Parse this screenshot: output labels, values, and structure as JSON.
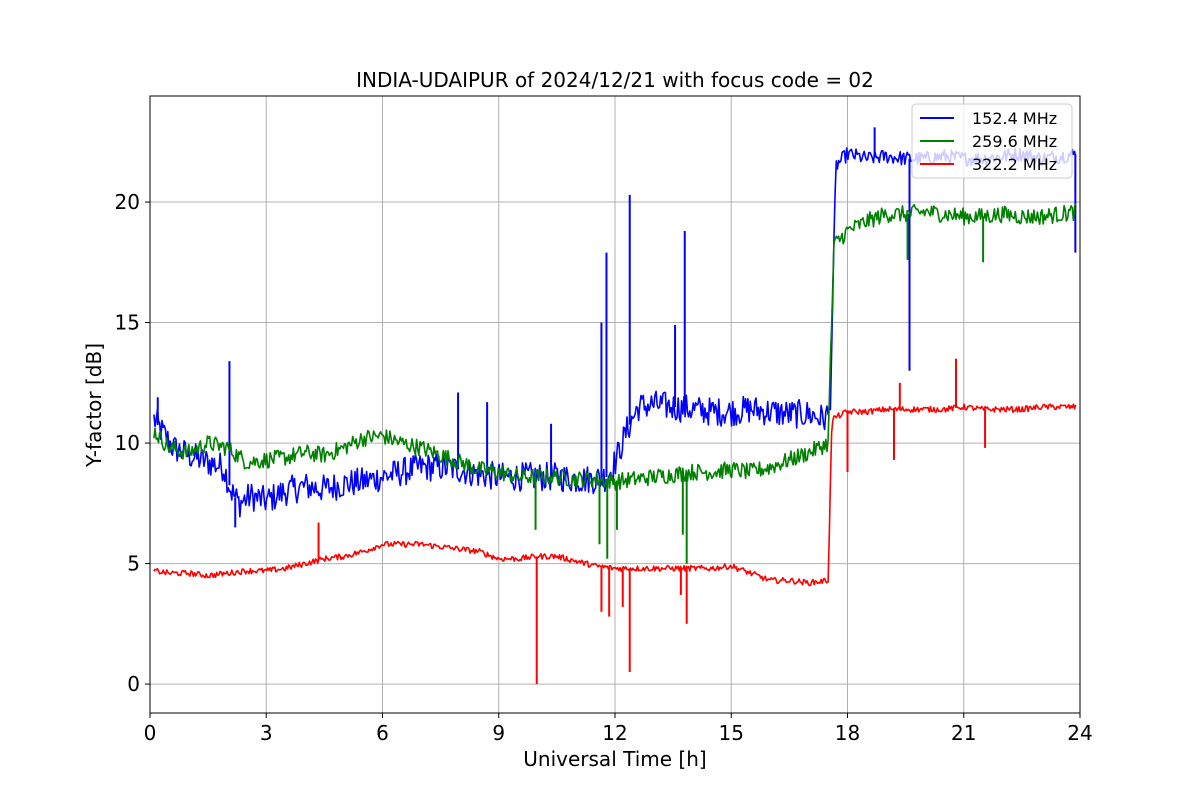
{
  "chart_data": {
    "type": "line",
    "title": "INDIA-UDAIPUR of 2024/12/21 with focus code = 02",
    "xlabel": "Universal Time [h]",
    "ylabel": "Y-factor [dB]",
    "xlim": [
      0,
      24
    ],
    "ylim": [
      -1.2,
      24.4
    ],
    "xticks": [
      0,
      3,
      6,
      9,
      12,
      15,
      18,
      21,
      24
    ],
    "yticks": [
      0,
      5,
      10,
      15,
      20
    ],
    "grid": true,
    "legend_position": "top-right",
    "series": [
      {
        "name": "152.4 MHz",
        "color": "#0000ff",
        "x": [
          0.1,
          0.3,
          0.6,
          1.0,
          1.5,
          1.9,
          2.1,
          2.3,
          2.6,
          3.0,
          3.5,
          4.0,
          4.5,
          5.0,
          5.5,
          6.0,
          6.5,
          7.0,
          7.5,
          8.0,
          8.5,
          9.0,
          9.5,
          10.0,
          10.5,
          11.0,
          11.5,
          11.8,
          12.0,
          12.3,
          12.6,
          13.0,
          13.5,
          14.0,
          14.5,
          15.0,
          15.5,
          16.0,
          16.5,
          17.0,
          17.4,
          17.55,
          17.7,
          18.0,
          18.5,
          19.0,
          19.5,
          20.0,
          20.5,
          21.0,
          21.5,
          22.0,
          22.5,
          23.0,
          23.5,
          23.9
        ],
        "y": [
          11.0,
          10.5,
          9.8,
          9.5,
          9.2,
          9.0,
          8.0,
          7.5,
          7.8,
          7.6,
          8.0,
          8.2,
          8.1,
          8.3,
          8.4,
          8.6,
          8.8,
          9.0,
          9.0,
          8.9,
          8.7,
          8.6,
          8.6,
          8.6,
          8.6,
          8.5,
          8.5,
          8.6,
          9.2,
          10.5,
          11.5,
          11.6,
          11.5,
          11.4,
          11.3,
          11.3,
          11.4,
          11.3,
          11.2,
          11.2,
          11.0,
          11.3,
          21.5,
          22.0,
          21.8,
          21.9,
          21.8,
          21.8,
          21.9,
          21.8,
          21.8,
          21.9,
          22.0,
          21.8,
          21.9,
          22.0
        ],
        "spikes": [
          [
            0.2,
            11.9
          ],
          [
            2.05,
            13.4
          ],
          [
            2.2,
            6.5
          ],
          [
            7.95,
            12.1
          ],
          [
            8.7,
            11.7
          ],
          [
            10.35,
            10.8
          ],
          [
            11.65,
            15.0
          ],
          [
            11.78,
            17.9
          ],
          [
            12.38,
            20.3
          ],
          [
            13.8,
            18.8
          ],
          [
            13.55,
            14.9
          ],
          [
            18.7,
            23.1
          ],
          [
            19.6,
            13.0
          ],
          [
            23.88,
            17.9
          ]
        ]
      },
      {
        "name": "259.6 MHz",
        "color": "#008000",
        "x": [
          0.1,
          0.5,
          1.0,
          1.5,
          2.0,
          2.5,
          3.0,
          3.5,
          4.0,
          4.5,
          5.0,
          5.5,
          6.0,
          6.5,
          7.0,
          7.5,
          8.0,
          8.5,
          9.0,
          9.5,
          10.0,
          10.5,
          11.0,
          11.5,
          12.0,
          12.5,
          13.0,
          13.5,
          14.0,
          14.5,
          15.0,
          15.5,
          16.0,
          16.5,
          17.0,
          17.5,
          17.65,
          18.0,
          18.5,
          19.0,
          19.5,
          20.0,
          20.5,
          21.0,
          21.5,
          22.0,
          22.5,
          23.0,
          23.5,
          23.9
        ],
        "y": [
          10.5,
          9.8,
          9.6,
          10.0,
          9.8,
          9.2,
          9.3,
          9.4,
          9.6,
          9.5,
          9.8,
          10.2,
          10.3,
          10.0,
          9.8,
          9.5,
          9.2,
          8.9,
          8.8,
          8.6,
          8.6,
          8.6,
          8.5,
          8.5,
          8.4,
          8.5,
          8.6,
          8.7,
          8.8,
          8.8,
          8.9,
          8.8,
          9.0,
          9.3,
          9.6,
          10.0,
          18.2,
          18.8,
          19.2,
          19.5,
          19.5,
          19.6,
          19.5,
          19.4,
          19.4,
          19.5,
          19.4,
          19.4,
          19.5,
          19.6
        ],
        "spikes": [
          [
            9.95,
            6.4
          ],
          [
            11.6,
            5.8
          ],
          [
            11.8,
            5.2
          ],
          [
            12.05,
            6.4
          ],
          [
            13.75,
            6.2
          ],
          [
            13.85,
            5.0
          ],
          [
            17.6,
            15.5
          ],
          [
            19.55,
            17.6
          ],
          [
            21.5,
            17.5
          ]
        ]
      },
      {
        "name": "322.2 MHz",
        "color": "#ff0000",
        "x": [
          0.1,
          0.5,
          1.0,
          1.5,
          2.0,
          2.5,
          3.0,
          3.5,
          4.0,
          4.5,
          5.0,
          5.5,
          6.0,
          6.5,
          7.0,
          7.5,
          8.0,
          8.5,
          9.0,
          9.5,
          10.0,
          10.5,
          11.0,
          11.5,
          12.0,
          12.5,
          13.0,
          13.5,
          14.0,
          14.5,
          15.0,
          15.5,
          16.0,
          16.5,
          17.0,
          17.5,
          17.6,
          18.0,
          18.5,
          19.0,
          19.5,
          20.0,
          20.5,
          21.0,
          21.5,
          22.0,
          22.5,
          23.0,
          23.5,
          23.9
        ],
        "y": [
          4.7,
          4.6,
          4.6,
          4.5,
          4.6,
          4.7,
          4.7,
          4.8,
          5.0,
          5.2,
          5.3,
          5.5,
          5.8,
          5.8,
          5.8,
          5.7,
          5.6,
          5.5,
          5.2,
          5.2,
          5.3,
          5.3,
          5.1,
          4.9,
          4.8,
          4.8,
          4.8,
          4.8,
          4.8,
          4.8,
          4.9,
          4.6,
          4.3,
          4.3,
          4.2,
          4.3,
          11.0,
          11.3,
          11.3,
          11.4,
          11.4,
          11.4,
          11.4,
          11.5,
          11.4,
          11.4,
          11.4,
          11.5,
          11.5,
          11.5
        ],
        "spikes": [
          [
            4.35,
            6.7
          ],
          [
            9.98,
            0.0
          ],
          [
            11.65,
            3.0
          ],
          [
            11.85,
            2.8
          ],
          [
            12.2,
            3.2
          ],
          [
            12.38,
            0.5
          ],
          [
            13.7,
            3.7
          ],
          [
            13.85,
            2.5
          ],
          [
            18.0,
            8.8
          ],
          [
            19.2,
            9.3
          ],
          [
            19.35,
            12.5
          ],
          [
            20.8,
            13.5
          ],
          [
            21.55,
            9.8
          ]
        ]
      }
    ]
  }
}
